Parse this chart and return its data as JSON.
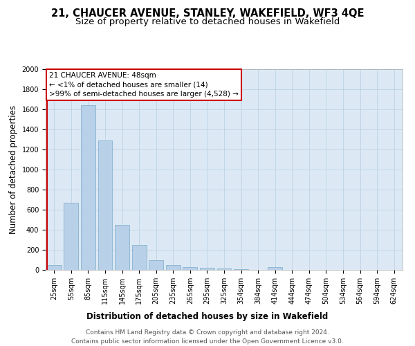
{
  "title_line1": "21, CHAUCER AVENUE, STANLEY, WAKEFIELD, WF3 4QE",
  "title_line2": "Size of property relative to detached houses in Wakefield",
  "xlabel": "Distribution of detached houses by size in Wakefield",
  "ylabel": "Number of detached properties",
  "categories": [
    "25sqm",
    "55sqm",
    "85sqm",
    "115sqm",
    "145sqm",
    "175sqm",
    "205sqm",
    "235sqm",
    "265sqm",
    "295sqm",
    "325sqm",
    "354sqm",
    "384sqm",
    "414sqm",
    "444sqm",
    "474sqm",
    "504sqm",
    "534sqm",
    "564sqm",
    "594sqm",
    "624sqm"
  ],
  "values": [
    50,
    670,
    1640,
    1290,
    450,
    250,
    95,
    50,
    30,
    20,
    15,
    8,
    0,
    30,
    0,
    0,
    0,
    0,
    0,
    0,
    0
  ],
  "bar_color": "#b8d0e8",
  "bar_edge_color": "#7aaac8",
  "highlight_color": "#cc0000",
  "annotation_text": "21 CHAUCER AVENUE: 48sqm\n← <1% of detached houses are smaller (14)\n>99% of semi-detached houses are larger (4,528) →",
  "annotation_box_color": "#ffffff",
  "annotation_box_edge_color": "#cc0000",
  "ylim": [
    0,
    2000
  ],
  "yticks": [
    0,
    200,
    400,
    600,
    800,
    1000,
    1200,
    1400,
    1600,
    1800,
    2000
  ],
  "plot_background_color": "#dce9f5",
  "footer_line1": "Contains HM Land Registry data © Crown copyright and database right 2024.",
  "footer_line2": "Contains public sector information licensed under the Open Government Licence v3.0.",
  "title_fontsize": 10.5,
  "subtitle_fontsize": 9.5,
  "axis_label_fontsize": 8.5,
  "tick_fontsize": 7,
  "annotation_fontsize": 7.5,
  "footer_fontsize": 6.5
}
